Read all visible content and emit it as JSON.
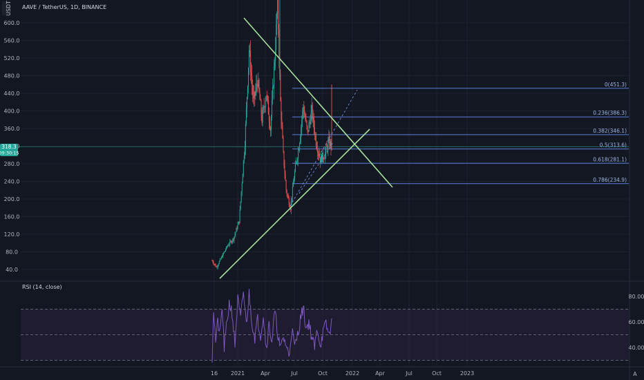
{
  "header": {
    "left_tag": "USDT",
    "title": "AAVE / TetherUS, 1D, BINANCE"
  },
  "current_price": {
    "value": "318.3",
    "timer": "09:30:15"
  },
  "rsi_title": "RSI (14, close)",
  "footer_right": "A",
  "colors": {
    "background": "#131722",
    "grid": "#1e222d",
    "up": "#26a69a",
    "down": "#ef5350",
    "trend": "#a5e09c",
    "fib": "#5b7fd8",
    "rsi": "#7e57c2",
    "rsi_band": "#2a2140",
    "price_tag": "#26a69a"
  },
  "chart_data": [
    {
      "type": "candlestick",
      "title": "AAVE / TetherUS, 1D, BINANCE",
      "ylim": [
        20,
        680
      ],
      "y_ticks": [
        "600.0",
        "560.0",
        "520.0",
        "480.0",
        "440.0",
        "400.0",
        "360.0",
        "320.0",
        "280.0",
        "240.0",
        "200.0",
        "160.0",
        "120.0",
        "80.0",
        "40.0"
      ],
      "y_tick_values": [
        600,
        560,
        520,
        480,
        440,
        400,
        360,
        320,
        280,
        240,
        200,
        160,
        120,
        80,
        40
      ],
      "x_ticks": [
        "16",
        "2021",
        "Apr",
        "Jul",
        "Oct",
        "2022",
        "Apr",
        "Jul",
        "Oct",
        "2023"
      ],
      "fib_levels": [
        {
          "label": "0(451.3)",
          "value": 451.3
        },
        {
          "label": "0.236(386.3)",
          "value": 386.3
        },
        {
          "label": "0.382(346.1)",
          "value": 346.1
        },
        {
          "label": "0.5(313.6)",
          "value": 313.6
        },
        {
          "label": "0.618(281.1)",
          "value": 281.1
        },
        {
          "label": "0.786(234.9)",
          "value": 234.9
        }
      ],
      "current_price_value": 318.3,
      "series_path": [
        {
          "t": 0,
          "v": 60
        },
        {
          "t": 6,
          "v": 45
        },
        {
          "t": 14,
          "v": 70
        },
        {
          "t": 22,
          "v": 95
        },
        {
          "t": 30,
          "v": 110
        },
        {
          "t": 38,
          "v": 150
        },
        {
          "t": 46,
          "v": 330
        },
        {
          "t": 52,
          "v": 540
        },
        {
          "t": 58,
          "v": 420
        },
        {
          "t": 64,
          "v": 470
        },
        {
          "t": 70,
          "v": 380
        },
        {
          "t": 76,
          "v": 440
        },
        {
          "t": 82,
          "v": 360
        },
        {
          "t": 88,
          "v": 520
        },
        {
          "t": 92,
          "v": 650
        },
        {
          "t": 96,
          "v": 420
        },
        {
          "t": 100,
          "v": 300
        },
        {
          "t": 104,
          "v": 220
        },
        {
          "t": 110,
          "v": 180
        },
        {
          "t": 116,
          "v": 260
        },
        {
          "t": 122,
          "v": 320
        },
        {
          "t": 128,
          "v": 410
        },
        {
          "t": 134,
          "v": 350
        },
        {
          "t": 140,
          "v": 400
        },
        {
          "t": 146,
          "v": 330
        },
        {
          "t": 152,
          "v": 290
        },
        {
          "t": 158,
          "v": 300
        },
        {
          "t": 164,
          "v": 330
        },
        {
          "t": 168,
          "v": 318
        }
      ]
    },
    {
      "type": "line",
      "title": "RSI (14, close)",
      "ylim": [
        25,
        90
      ],
      "y_ticks": [
        "80.00",
        "60.00",
        "40.00"
      ],
      "y_tick_values": [
        80,
        60,
        40
      ],
      "bands": [
        70,
        50,
        30
      ],
      "series_path": [
        {
          "t": 0,
          "v": 32
        },
        {
          "t": 2,
          "v": 70
        },
        {
          "t": 5,
          "v": 45
        },
        {
          "t": 8,
          "v": 60
        },
        {
          "t": 11,
          "v": 50
        },
        {
          "t": 14,
          "v": 72
        },
        {
          "t": 17,
          "v": 40
        },
        {
          "t": 20,
          "v": 55
        },
        {
          "t": 24,
          "v": 75
        },
        {
          "t": 28,
          "v": 68
        },
        {
          "t": 32,
          "v": 42
        },
        {
          "t": 36,
          "v": 78
        },
        {
          "t": 40,
          "v": 62
        },
        {
          "t": 44,
          "v": 84
        },
        {
          "t": 48,
          "v": 58
        },
        {
          "t": 52,
          "v": 82
        },
        {
          "t": 56,
          "v": 60
        },
        {
          "t": 60,
          "v": 48
        },
        {
          "t": 64,
          "v": 62
        },
        {
          "t": 68,
          "v": 50
        },
        {
          "t": 72,
          "v": 65
        },
        {
          "t": 76,
          "v": 40
        },
        {
          "t": 80,
          "v": 58
        },
        {
          "t": 84,
          "v": 45
        },
        {
          "t": 88,
          "v": 68
        },
        {
          "t": 92,
          "v": 52
        },
        {
          "t": 96,
          "v": 38
        },
        {
          "t": 100,
          "v": 48
        },
        {
          "t": 104,
          "v": 42
        },
        {
          "t": 108,
          "v": 33
        },
        {
          "t": 112,
          "v": 55
        },
        {
          "t": 116,
          "v": 40
        },
        {
          "t": 120,
          "v": 50
        },
        {
          "t": 124,
          "v": 62
        },
        {
          "t": 128,
          "v": 72
        },
        {
          "t": 132,
          "v": 55
        },
        {
          "t": 136,
          "v": 60
        },
        {
          "t": 140,
          "v": 48
        },
        {
          "t": 144,
          "v": 40
        },
        {
          "t": 148,
          "v": 55
        },
        {
          "t": 152,
          "v": 42
        },
        {
          "t": 156,
          "v": 52
        },
        {
          "t": 160,
          "v": 58
        },
        {
          "t": 164,
          "v": 50
        },
        {
          "t": 168,
          "v": 60
        }
      ]
    }
  ]
}
